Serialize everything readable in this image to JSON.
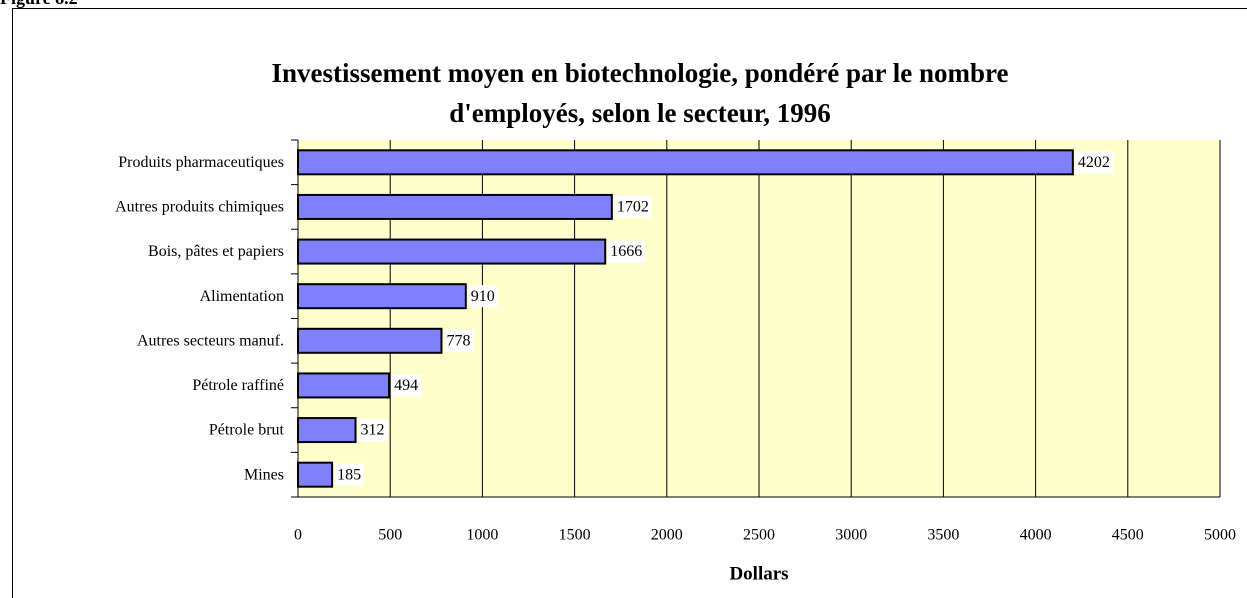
{
  "figure_label": "Figure 8.2",
  "chart_data": {
    "type": "bar",
    "orientation": "horizontal",
    "title": [
      "Investissement moyen en biotechnologie, pondéré par le nombre",
      "d'employés, selon le secteur, 1996"
    ],
    "x_label": "Dollars",
    "categories": [
      "Produits pharmaceutiques",
      "Autres produits chimiques",
      "Bois, pâtes et papiers",
      "Alimentation",
      "Autres secteurs manuf.",
      "Pétrole raffiné",
      "Pétrole brut",
      "Mines"
    ],
    "values": [
      4202,
      1702,
      1666,
      910,
      778,
      494,
      312,
      185
    ],
    "color": "#8080ff",
    "background": "#ffffcc",
    "xlim": [
      0,
      5000
    ],
    "xticks": [
      0,
      500,
      1000,
      1500,
      2000,
      2500,
      3000,
      3500,
      4000,
      4500,
      5000
    ],
    "grid": true
  }
}
